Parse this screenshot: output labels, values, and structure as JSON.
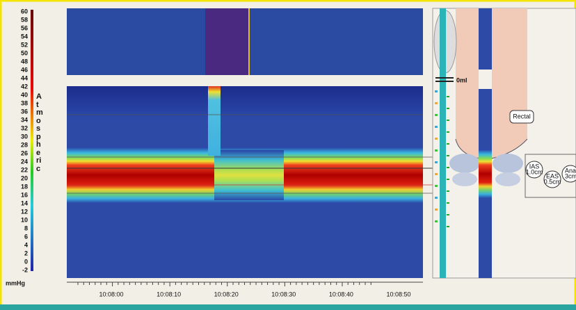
{
  "colorbar": {
    "ticks": [
      "60",
      "58",
      "56",
      "54",
      "52",
      "50",
      "48",
      "46",
      "44",
      "42",
      "40",
      "38",
      "36",
      "34",
      "32",
      "30",
      "28",
      "26",
      "24",
      "22",
      "20",
      "18",
      "16",
      "14",
      "12",
      "10",
      "8",
      "6",
      "4",
      "2",
      "0",
      "-2"
    ],
    "label": "Atmospheric",
    "unit": "mmHg"
  },
  "time_axis": {
    "labels": [
      "10:08:00",
      "10:08:10",
      "10:08:20",
      "10:08:30",
      "10:08:40",
      "10:08:50"
    ]
  },
  "diagram": {
    "volume": "0ml",
    "rectal": "Rectal",
    "ias": {
      "name": "IAS",
      "length": "1.0cm"
    },
    "eas": {
      "name": "EAS",
      "length": "0.5cm"
    },
    "anal": {
      "name": "Anal",
      "length": "3cm"
    }
  }
}
